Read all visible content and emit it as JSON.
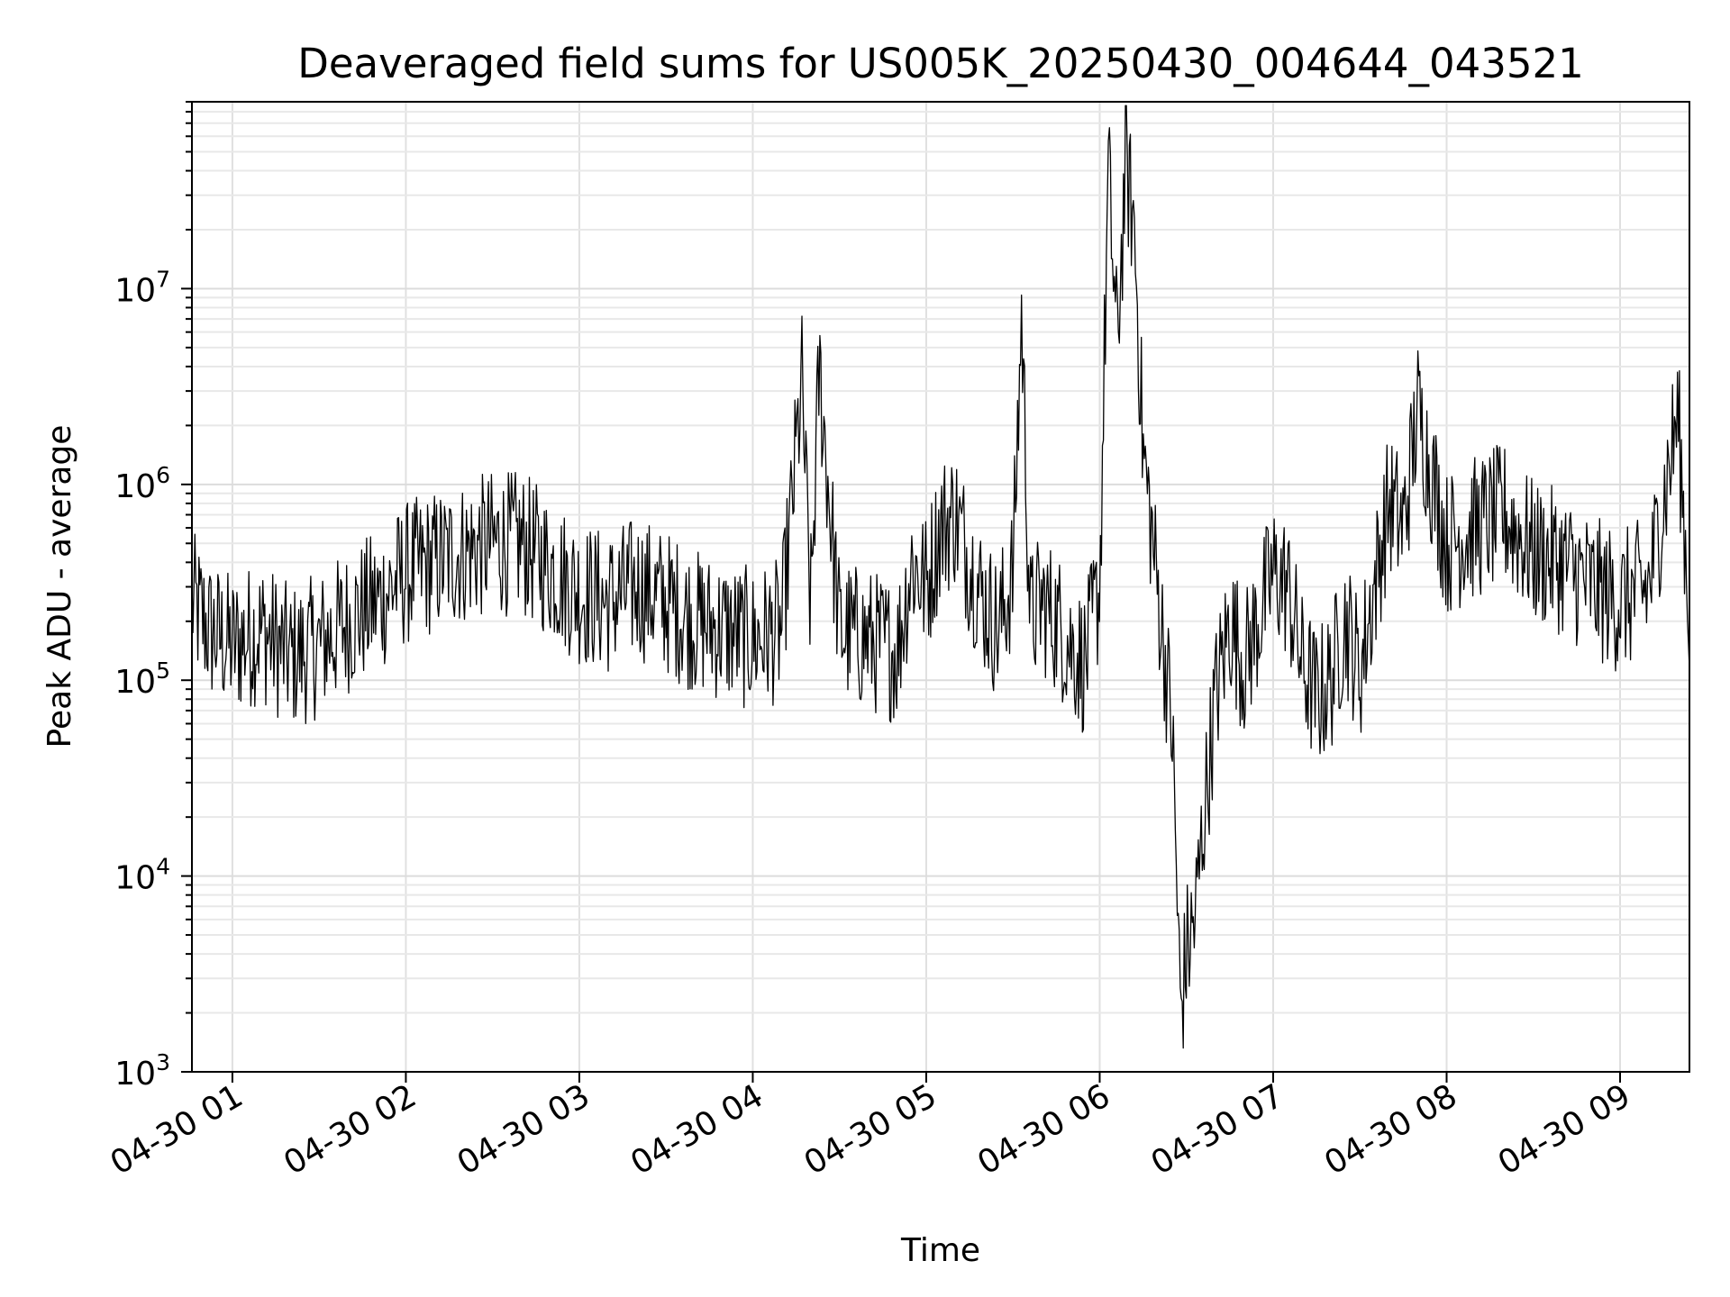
{
  "chart_data": {
    "type": "line",
    "title": "Deaveraged field sums for US005K_20250430_004644_043521",
    "xlabel": "Time",
    "ylabel": "Peak ADU - average",
    "yscale": "log",
    "ylim": [
      1000,
      90000000
    ],
    "xlim": [
      "04-30 00:46",
      "04-30 09:24"
    ],
    "x_ticks": [
      "04-30 01",
      "04-30 02",
      "04-30 03",
      "04-30 04",
      "04-30 05",
      "04-30 06",
      "04-30 07",
      "04-30 08",
      "04-30 09"
    ],
    "y_ticks": [
      {
        "base": "10",
        "exp": "3"
      },
      {
        "base": "10",
        "exp": "4"
      },
      {
        "base": "10",
        "exp": "5"
      },
      {
        "base": "10",
        "exp": "6"
      },
      {
        "base": "10",
        "exp": "7"
      }
    ],
    "grid": true,
    "series": [
      {
        "color": "#000000",
        "x": [
          "04-30 00:46",
          "04-30 00:52",
          "04-30 01:00",
          "04-30 01:10",
          "04-30 01:20",
          "04-30 01:30",
          "04-30 01:40",
          "04-30 01:50",
          "04-30 02:00",
          "04-30 02:10",
          "04-30 02:20",
          "04-30 02:30",
          "04-30 02:40",
          "04-30 02:50",
          "04-30 03:00",
          "04-30 03:10",
          "04-30 03:20",
          "04-30 03:30",
          "04-30 03:40",
          "04-30 03:50",
          "04-30 04:00",
          "04-30 04:10",
          "04-30 04:17",
          "04-30 04:20",
          "04-30 04:23",
          "04-30 04:30",
          "04-30 04:40",
          "04-30 04:50",
          "04-30 04:55",
          "04-30 05:00",
          "04-30 05:05",
          "04-30 05:10",
          "04-30 05:15",
          "04-30 05:20",
          "04-30 05:25",
          "04-30 05:30",
          "04-30 05:33",
          "04-30 05:36",
          "04-30 05:40",
          "04-30 05:45",
          "04-30 05:50",
          "04-30 05:55",
          "04-30 06:00",
          "04-30 06:03",
          "04-30 06:06",
          "04-30 06:09",
          "04-30 06:12",
          "04-30 06:15",
          "04-30 06:20",
          "04-30 06:25",
          "04-30 06:28",
          "04-30 06:30",
          "04-30 06:33",
          "04-30 06:36",
          "04-30 06:40",
          "04-30 06:45",
          "04-30 06:50",
          "04-30 07:00",
          "04-30 07:05",
          "04-30 07:10",
          "04-30 07:15",
          "04-30 07:20",
          "04-30 07:25",
          "04-30 07:30",
          "04-30 07:35",
          "04-30 07:40",
          "04-30 07:45",
          "04-30 07:50",
          "04-30 08:00",
          "04-30 08:10",
          "04-30 08:20",
          "04-30 08:30",
          "04-30 08:40",
          "04-30 08:50",
          "04-30 09:00",
          "04-30 09:10",
          "04-30 09:20",
          "04-30 09:24"
        ],
        "y": [
          250000,
          180000,
          150000,
          180000,
          130000,
          150000,
          200000,
          250000,
          350000,
          400000,
          450000,
          500000,
          500000,
          380000,
          280000,
          250000,
          300000,
          250000,
          200000,
          180000,
          160000,
          180000,
          3300000,
          220000,
          3900000,
          180000,
          160000,
          140000,
          400000,
          300000,
          600000,
          700000,
          400000,
          250000,
          180000,
          350000,
          7300000,
          200000,
          250000,
          200000,
          150000,
          120000,
          300000,
          40000000,
          5000000,
          44000000,
          20000000,
          1500000,
          300000,
          60000,
          2000,
          4000,
          6000,
          20000,
          80000,
          200000,
          120000,
          350000,
          300000,
          120000,
          80000,
          100000,
          200000,
          110000,
          300000,
          800000,
          600000,
          2400000,
          500000,
          600000,
          700000,
          450000,
          400000,
          300000,
          250000,
          300000,
          2300000,
          200000
        ]
      }
    ]
  }
}
